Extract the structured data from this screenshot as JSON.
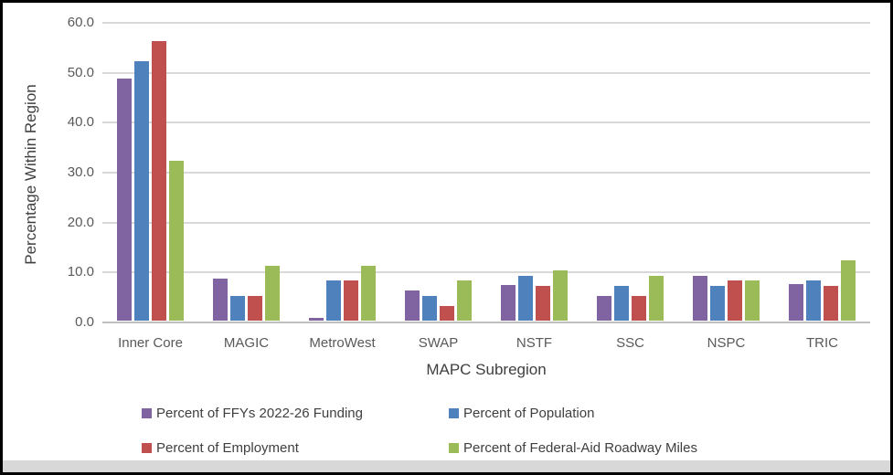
{
  "window": {
    "background": "#ffffff",
    "border_color": "#000000",
    "bottom_strip_color": "#d8d8d8",
    "gridline_color": "#d9d9d9",
    "tick_text_color": "#595959",
    "title_text_color": "#3f3f3f"
  },
  "chart_data": {
    "type": "bar",
    "title": "",
    "xlabel": "MAPC Subregion",
    "ylabel": "Percentage Within Region",
    "categories": [
      "Inner Core",
      "MAGIC",
      "MetroWest",
      "SWAP",
      "NSTF",
      "SSC",
      "NSPC",
      "TRIC"
    ],
    "series": [
      {
        "name": "Percent of FFYs 2022-26 Funding",
        "color": "#8064A2",
        "values": [
          48.5,
          8.5,
          0.6,
          6.0,
          7.2,
          5.0,
          9.0,
          7.3
        ]
      },
      {
        "name": "Percent of Population",
        "color": "#4F81BD",
        "values": [
          52.0,
          5.0,
          8.0,
          5.0,
          9.0,
          7.0,
          7.0,
          8.0
        ]
      },
      {
        "name": "Percent of Employment",
        "color": "#C0504D",
        "values": [
          56.0,
          5.0,
          8.0,
          3.0,
          7.0,
          5.0,
          8.0,
          7.0
        ]
      },
      {
        "name": "Percent of Federal-Aid Roadway Miles",
        "color": "#9BBB59",
        "values": [
          32.0,
          11.0,
          11.0,
          8.0,
          10.0,
          9.0,
          8.0,
          12.0
        ]
      }
    ],
    "ylim": [
      0,
      60
    ],
    "ytick_step": 10,
    "ytick_labels": [
      "0.0",
      "10.0",
      "20.0",
      "30.0",
      "40.0",
      "50.0",
      "60.0"
    ],
    "grid": "horizontal",
    "legend_position": "bottom"
  }
}
